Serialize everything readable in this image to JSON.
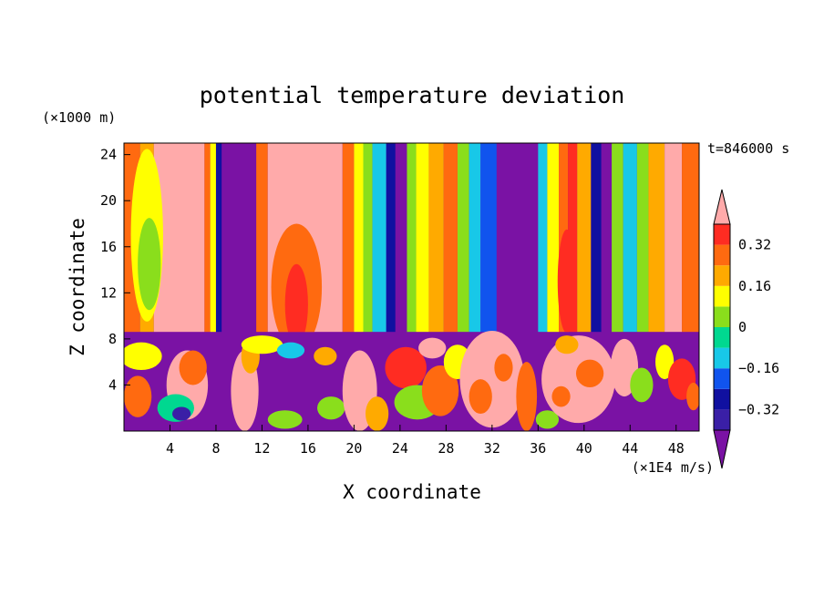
{
  "chart_data": {
    "type": "heatmap",
    "title": "potential temperature deviation",
    "time_label": "t=846000 s",
    "xlabel": "X coordinate",
    "ylabel": "Z coordinate",
    "x_unit": "(×1E4 m/s)",
    "y_unit": "(×1000 m)",
    "xlim": [
      0,
      50
    ],
    "ylim": [
      0,
      25
    ],
    "x_ticks": [
      4,
      8,
      12,
      16,
      20,
      24,
      28,
      32,
      36,
      40,
      44,
      48
    ],
    "y_ticks": [
      4,
      8,
      12,
      16,
      20,
      24
    ],
    "grid": false,
    "colorbar": {
      "placement": "right",
      "levels": [
        -0.4,
        -0.32,
        -0.24,
        -0.16,
        -0.08,
        0,
        0.08,
        0.16,
        0.24,
        0.32,
        0.4
      ],
      "tick_labels": [
        "0.32",
        "0.16",
        "0",
        "−0.16",
        "−0.32"
      ],
      "tick_values": [
        0.32,
        0.16,
        0,
        -0.16,
        -0.32
      ],
      "colors": [
        "#7a12a4",
        "#3a1fa6",
        "#1010a0",
        "#1054ee",
        "#18c8e8",
        "#00d890",
        "#8ade1c",
        "#ffff00",
        "#ffaa00",
        "#ff6a10",
        "#ff2c22",
        "#ffaaaa"
      ]
    },
    "upper_columns": [
      {
        "x0": 0,
        "x1": 1.4,
        "v": 0.3
      },
      {
        "x0": 1.4,
        "x1": 2.6,
        "v": 0.2
      },
      {
        "x0": 2.6,
        "x1": 7.0,
        "v": 0.5
      },
      {
        "x0": 7.0,
        "x1": 7.5,
        "v": 0.26
      },
      {
        "x0": 7.5,
        "x1": 8.0,
        "v": 0.12
      },
      {
        "x0": 8.0,
        "x1": 8.5,
        "v": -0.3
      },
      {
        "x0": 8.5,
        "x1": 11.5,
        "v": -0.5
      },
      {
        "x0": 11.5,
        "x1": 12.5,
        "v": 0.3
      },
      {
        "x0": 12.5,
        "x1": 19.0,
        "v": 0.5
      },
      {
        "x0": 19.0,
        "x1": 20.0,
        "v": 0.28
      },
      {
        "x0": 20.0,
        "x1": 20.8,
        "v": 0.1
      },
      {
        "x0": 20.8,
        "x1": 21.6,
        "v": 0.04
      },
      {
        "x0": 21.6,
        "x1": 22.8,
        "v": -0.1
      },
      {
        "x0": 22.8,
        "x1": 23.6,
        "v": -0.3
      },
      {
        "x0": 23.6,
        "x1": 24.6,
        "v": -0.5
      },
      {
        "x0": 24.6,
        "x1": 25.4,
        "v": 0.0
      },
      {
        "x0": 25.4,
        "x1": 26.5,
        "v": 0.1
      },
      {
        "x0": 26.5,
        "x1": 27.8,
        "v": 0.2
      },
      {
        "x0": 27.8,
        "x1": 29.0,
        "v": 0.3
      },
      {
        "x0": 29.0,
        "x1": 30.0,
        "v": 0.04
      },
      {
        "x0": 30.0,
        "x1": 31.0,
        "v": -0.12
      },
      {
        "x0": 31.0,
        "x1": 32.4,
        "v": -0.22
      },
      {
        "x0": 32.4,
        "x1": 36.0,
        "v": -0.5
      },
      {
        "x0": 36.0,
        "x1": 36.8,
        "v": -0.12
      },
      {
        "x0": 36.8,
        "x1": 37.8,
        "v": 0.1
      },
      {
        "x0": 37.8,
        "x1": 38.6,
        "v": 0.28
      },
      {
        "x0": 38.6,
        "x1": 39.4,
        "v": 0.35
      },
      {
        "x0": 39.4,
        "x1": 40.6,
        "v": 0.22
      },
      {
        "x0": 40.6,
        "x1": 41.5,
        "v": -0.3
      },
      {
        "x0": 41.5,
        "x1": 42.4,
        "v": -0.5
      },
      {
        "x0": 42.4,
        "x1": 43.4,
        "v": 0.06
      },
      {
        "x0": 43.4,
        "x1": 44.6,
        "v": -0.1
      },
      {
        "x0": 44.6,
        "x1": 45.6,
        "v": 0.04
      },
      {
        "x0": 45.6,
        "x1": 47.0,
        "v": 0.22
      },
      {
        "x0": 47.0,
        "x1": 48.5,
        "v": 0.45
      },
      {
        "x0": 48.5,
        "x1": 50.0,
        "v": 0.3
      }
    ],
    "upper_blobs": [
      {
        "cx": 15.0,
        "cy": 12.5,
        "rx": 2.2,
        "ry": 5.5,
        "v": 0.3
      },
      {
        "cx": 15.0,
        "cy": 11.0,
        "rx": 1.0,
        "ry": 3.5,
        "v": 0.36
      },
      {
        "cx": 2.0,
        "cy": 17.0,
        "rx": 1.4,
        "ry": 7.5,
        "v": 0.12
      },
      {
        "cx": 2.2,
        "cy": 14.5,
        "rx": 1.0,
        "ry": 4.0,
        "v": 0.04
      },
      {
        "cx": 38.5,
        "cy": 13.0,
        "rx": 0.8,
        "ry": 4.5,
        "v": 0.32
      }
    ],
    "boundary_z": 8.6,
    "lower_base": -0.5,
    "lower_blobs": [
      {
        "cx": 1.5,
        "cy": 6.5,
        "rx": 1.8,
        "ry": 1.2,
        "v": 0.1
      },
      {
        "cx": 1.2,
        "cy": 3.0,
        "rx": 1.2,
        "ry": 1.8,
        "v": 0.3
      },
      {
        "cx": 5.5,
        "cy": 4.0,
        "rx": 1.8,
        "ry": 3.0,
        "v": 0.5
      },
      {
        "cx": 6.0,
        "cy": 5.5,
        "rx": 1.2,
        "ry": 1.5,
        "v": 0.3
      },
      {
        "cx": 4.5,
        "cy": 2.0,
        "rx": 1.6,
        "ry": 1.2,
        "v": -0.05
      },
      {
        "cx": 5.0,
        "cy": 1.5,
        "rx": 0.8,
        "ry": 0.6,
        "v": -0.4
      },
      {
        "cx": 10.5,
        "cy": 3.5,
        "rx": 1.2,
        "ry": 3.5,
        "v": 0.5
      },
      {
        "cx": 11.0,
        "cy": 6.5,
        "rx": 0.8,
        "ry": 1.5,
        "v": 0.2
      },
      {
        "cx": 12.0,
        "cy": 7.5,
        "rx": 1.8,
        "ry": 0.8,
        "v": 0.1
      },
      {
        "cx": 14.0,
        "cy": 1.0,
        "rx": 1.5,
        "ry": 0.8,
        "v": 0.05
      },
      {
        "cx": 14.5,
        "cy": 7.0,
        "rx": 1.2,
        "ry": 0.7,
        "v": -0.12
      },
      {
        "cx": 17.5,
        "cy": 6.5,
        "rx": 1.0,
        "ry": 0.8,
        "v": 0.2
      },
      {
        "cx": 18.0,
        "cy": 2.0,
        "rx": 1.2,
        "ry": 1.0,
        "v": 0.0
      },
      {
        "cx": 20.5,
        "cy": 3.5,
        "rx": 1.5,
        "ry": 3.5,
        "v": 0.5
      },
      {
        "cx": 22.0,
        "cy": 1.5,
        "rx": 1.0,
        "ry": 1.5,
        "v": 0.2
      },
      {
        "cx": 24.5,
        "cy": 5.5,
        "rx": 1.8,
        "ry": 1.8,
        "v": 0.35
      },
      {
        "cx": 25.5,
        "cy": 2.5,
        "rx": 2.0,
        "ry": 1.5,
        "v": 0.0
      },
      {
        "cx": 27.5,
        "cy": 3.5,
        "rx": 1.6,
        "ry": 2.2,
        "v": 0.3
      },
      {
        "cx": 26.8,
        "cy": 7.2,
        "rx": 1.2,
        "ry": 0.9,
        "v": 0.5
      },
      {
        "cx": 29.0,
        "cy": 6.0,
        "rx": 1.2,
        "ry": 1.5,
        "v": 0.12
      },
      {
        "cx": 32.0,
        "cy": 4.5,
        "rx": 2.8,
        "ry": 4.2,
        "v": 0.5
      },
      {
        "cx": 31.0,
        "cy": 3.0,
        "rx": 1.0,
        "ry": 1.5,
        "v": 0.3
      },
      {
        "cx": 33.0,
        "cy": 5.5,
        "rx": 0.8,
        "ry": 1.2,
        "v": 0.3
      },
      {
        "cx": 35.0,
        "cy": 3.0,
        "rx": 0.9,
        "ry": 3.0,
        "v": 0.3
      },
      {
        "cx": 36.8,
        "cy": 1.0,
        "rx": 1.0,
        "ry": 0.8,
        "v": 0.0
      },
      {
        "cx": 39.5,
        "cy": 4.5,
        "rx": 3.2,
        "ry": 3.8,
        "v": 0.5
      },
      {
        "cx": 40.5,
        "cy": 5.0,
        "rx": 1.2,
        "ry": 1.2,
        "v": 0.3
      },
      {
        "cx": 38.0,
        "cy": 3.0,
        "rx": 0.8,
        "ry": 0.9,
        "v": 0.3
      },
      {
        "cx": 38.5,
        "cy": 7.5,
        "rx": 1.0,
        "ry": 0.8,
        "v": 0.2
      },
      {
        "cx": 43.5,
        "cy": 5.5,
        "rx": 1.2,
        "ry": 2.5,
        "v": 0.4
      },
      {
        "cx": 45.0,
        "cy": 4.0,
        "rx": 1.0,
        "ry": 1.5,
        "v": 0.0
      },
      {
        "cx": 47.0,
        "cy": 6.0,
        "rx": 0.8,
        "ry": 1.5,
        "v": 0.1
      },
      {
        "cx": 48.5,
        "cy": 4.5,
        "rx": 1.2,
        "ry": 1.8,
        "v": 0.35
      },
      {
        "cx": 49.5,
        "cy": 3.0,
        "rx": 0.6,
        "ry": 1.2,
        "v": 0.3
      }
    ]
  }
}
